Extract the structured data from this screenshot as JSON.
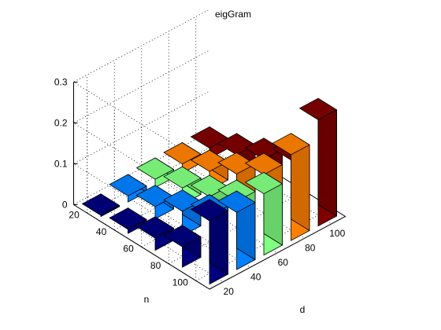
{
  "chart_data": {
    "type": "bar3",
    "title": "eigGram",
    "xlabel": "d",
    "ylabel": "n",
    "zlabel": "",
    "d_values": [
      20,
      40,
      60,
      80,
      100
    ],
    "n_values": [
      20,
      40,
      60,
      80,
      100
    ],
    "z_ticks": [
      "0",
      "0.1",
      "0.2",
      "0.3"
    ],
    "zlim": [
      0,
      0.3
    ],
    "grid": true,
    "rows": [
      {
        "d": 20,
        "color": "#00007f",
        "values": [
          0.003,
          0.01,
          0.03,
          0.05,
          0.155
        ]
      },
      {
        "d": 40,
        "color": "#0080ff",
        "values": [
          0.015,
          0.03,
          0.06,
          0.09,
          0.14
        ]
      },
      {
        "d": 60,
        "color": "#80ff80",
        "values": [
          0.02,
          0.04,
          0.06,
          0.09,
          0.15
        ]
      },
      {
        "d": 80,
        "color": "#ff8000",
        "values": [
          0.022,
          0.045,
          0.08,
          0.12,
          0.21
        ]
      },
      {
        "d": 100,
        "color": "#7f0000",
        "values": [
          0.025,
          0.05,
          0.08,
          0.12,
          0.26
        ]
      }
    ]
  }
}
